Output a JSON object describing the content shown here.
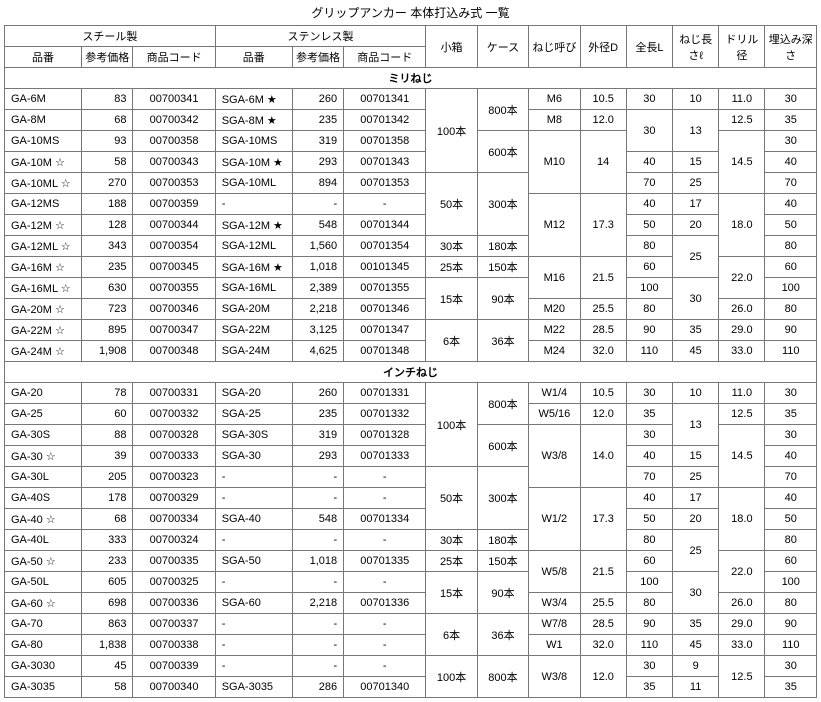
{
  "title": "グリップアンカー 本体打込み式 一覧",
  "hdr": {
    "steel": "スチール製",
    "sus": "ステンレス製",
    "name": "品番",
    "price": "参考価格",
    "code": "商品コード",
    "small": "小箱",
    "case": "ケース",
    "thread": "ねじ呼び",
    "d": "外径D",
    "l": "全長L",
    "e": "ねじ長さℓ",
    "drill": "ドリル径",
    "depth": "埋込み深さ"
  },
  "sec1": {
    "title": "ミリねじ"
  },
  "sec2": {
    "title": "インチねじ"
  },
  "mm": [
    {
      "n": "GA-6M",
      "p": "83",
      "c": "00700341",
      "sn": "SGA-6M ★",
      "sp": "260",
      "sc": "00701341"
    },
    {
      "n": "GA-8M",
      "p": "68",
      "c": "00700342",
      "sn": "SGA-8M ★",
      "sp": "235",
      "sc": "00701342"
    },
    {
      "n": "GA-10MS",
      "p": "93",
      "c": "00700358",
      "sn": "SGA-10MS",
      "sp": "319",
      "sc": "00701358"
    },
    {
      "n": "GA-10M ☆",
      "p": "58",
      "c": "00700343",
      "sn": "SGA-10M ★",
      "sp": "293",
      "sc": "00701343"
    },
    {
      "n": "GA-10ML ☆",
      "p": "270",
      "c": "00700353",
      "sn": "SGA-10ML",
      "sp": "894",
      "sc": "00701353"
    },
    {
      "n": "GA-12MS",
      "p": "188",
      "c": "00700359",
      "sn": "-",
      "sp": "-",
      "sc": "-"
    },
    {
      "n": "GA-12M ☆",
      "p": "128",
      "c": "00700344",
      "sn": "SGA-12M ★",
      "sp": "548",
      "sc": "00701344"
    },
    {
      "n": "GA-12ML ☆",
      "p": "343",
      "c": "00700354",
      "sn": "SGA-12ML",
      "sp": "1,560",
      "sc": "00701354"
    },
    {
      "n": "GA-16M ☆",
      "p": "235",
      "c": "00700345",
      "sn": "SGA-16M ★",
      "sp": "1,018",
      "sc": "00101345"
    },
    {
      "n": "GA-16ML ☆",
      "p": "630",
      "c": "00700355",
      "sn": "SGA-16ML",
      "sp": "2,389",
      "sc": "00701355"
    },
    {
      "n": "GA-20M ☆",
      "p": "723",
      "c": "00700346",
      "sn": "SGA-20M",
      "sp": "2,218",
      "sc": "00701346"
    },
    {
      "n": "GA-22M ☆",
      "p": "895",
      "c": "00700347",
      "sn": "SGA-22M",
      "sp": "3,125",
      "sc": "00701347"
    },
    {
      "n": "GA-24M ☆",
      "p": "1,908",
      "c": "00700348",
      "sn": "SGA-24M",
      "sp": "4,625",
      "sc": "00701348"
    }
  ],
  "mm_small": [
    "100本",
    "50本",
    "30本",
    "25本",
    "15本",
    "6本"
  ],
  "mm_case": [
    "800本",
    "600本",
    "300本",
    "180本",
    "150本",
    "90本",
    "36本"
  ],
  "mm_thread": [
    "M6",
    "M8",
    "M10",
    "M12",
    "M16",
    "M20",
    "M22",
    "M24"
  ],
  "mm_d": [
    "10.5",
    "12.0",
    "14",
    "17.3",
    "21.5",
    "25.5",
    "28.5",
    "32.0"
  ],
  "mm_l": [
    "30",
    "30",
    "30",
    "40",
    "70",
    "40",
    "50",
    "80",
    "60",
    "100",
    "80",
    "90",
    "110"
  ],
  "mm_e": [
    "10",
    "13",
    "15",
    "25",
    "17",
    "20",
    "25",
    "30",
    "35",
    "45"
  ],
  "mm_drill": [
    "11.0",
    "12.5",
    "14.5",
    "18.0",
    "22.0",
    "26.0",
    "29.0",
    "33.0"
  ],
  "mm_depth": [
    "30",
    "35",
    "30",
    "40",
    "70",
    "40",
    "50",
    "80",
    "60",
    "100",
    "80",
    "90",
    "110"
  ],
  "in": [
    {
      "n": "GA-20",
      "p": "78",
      "c": "00700331",
      "sn": "SGA-20",
      "sp": "260",
      "sc": "00701331"
    },
    {
      "n": "GA-25",
      "p": "60",
      "c": "00700332",
      "sn": "SGA-25",
      "sp": "235",
      "sc": "00701332"
    },
    {
      "n": "GA-30S",
      "p": "88",
      "c": "00700328",
      "sn": "SGA-30S",
      "sp": "319",
      "sc": "00701328"
    },
    {
      "n": "GA-30 ☆",
      "p": "39",
      "c": "00700333",
      "sn": "SGA-30",
      "sp": "293",
      "sc": "00701333"
    },
    {
      "n": "GA-30L",
      "p": "205",
      "c": "00700323",
      "sn": "-",
      "sp": "-",
      "sc": "-"
    },
    {
      "n": "GA-40S",
      "p": "178",
      "c": "00700329",
      "sn": "-",
      "sp": "-",
      "sc": "-"
    },
    {
      "n": "GA-40 ☆",
      "p": "68",
      "c": "00700334",
      "sn": "SGA-40",
      "sp": "548",
      "sc": "00701334"
    },
    {
      "n": "GA-40L",
      "p": "333",
      "c": "00700324",
      "sn": "-",
      "sp": "-",
      "sc": "-"
    },
    {
      "n": "GA-50 ☆",
      "p": "233",
      "c": "00700335",
      "sn": "SGA-50",
      "sp": "1,018",
      "sc": "00701335"
    },
    {
      "n": "GA-50L",
      "p": "605",
      "c": "00700325",
      "sn": "-",
      "sp": "-",
      "sc": "-"
    },
    {
      "n": "GA-60 ☆",
      "p": "698",
      "c": "00700336",
      "sn": "SGA-60",
      "sp": "2,218",
      "sc": "00701336"
    },
    {
      "n": "GA-70",
      "p": "863",
      "c": "00700337",
      "sn": "-",
      "sp": "-",
      "sc": "-"
    },
    {
      "n": "GA-80",
      "p": "1,838",
      "c": "00700338",
      "sn": "-",
      "sp": "-",
      "sc": "-"
    },
    {
      "n": "GA-3030",
      "p": "45",
      "c": "00700339",
      "sn": "-",
      "sp": "-",
      "sc": "-"
    },
    {
      "n": "GA-3035",
      "p": "58",
      "c": "00700340",
      "sn": "SGA-3035",
      "sp": "286",
      "sc": "00701340"
    }
  ],
  "in_small": [
    "100本",
    "50本",
    "30本",
    "25本",
    "15本",
    "6本",
    "100本"
  ],
  "in_case": [
    "800本",
    "600本",
    "300本",
    "180本",
    "150本",
    "90本",
    "36本",
    "800本"
  ],
  "in_thread": [
    "W1/4",
    "W5/16",
    "W3/8",
    "W1/2",
    "W5/8",
    "W3/4",
    "W7/8",
    "W1",
    "W3/8"
  ],
  "in_d": [
    "10.5",
    "12.0",
    "14.0",
    "17.3",
    "21.5",
    "25.5",
    "28.5",
    "32.0",
    "12.0"
  ],
  "in_l": [
    "30",
    "35",
    "30",
    "40",
    "70",
    "40",
    "50",
    "80",
    "60",
    "100",
    "80",
    "90",
    "110",
    "30",
    "35"
  ],
  "in_e": [
    "10",
    "13",
    "15",
    "25",
    "17",
    "20",
    "25",
    "30",
    "35",
    "45",
    "9",
    "11"
  ],
  "in_drill": [
    "11.0",
    "12.5",
    "14.5",
    "18.0",
    "22.0",
    "26.0",
    "29.0",
    "33.0",
    "12.5"
  ],
  "in_depth": [
    "30",
    "35",
    "30",
    "40",
    "70",
    "40",
    "50",
    "80",
    "60",
    "100",
    "80",
    "90",
    "110",
    "30",
    "35"
  ]
}
